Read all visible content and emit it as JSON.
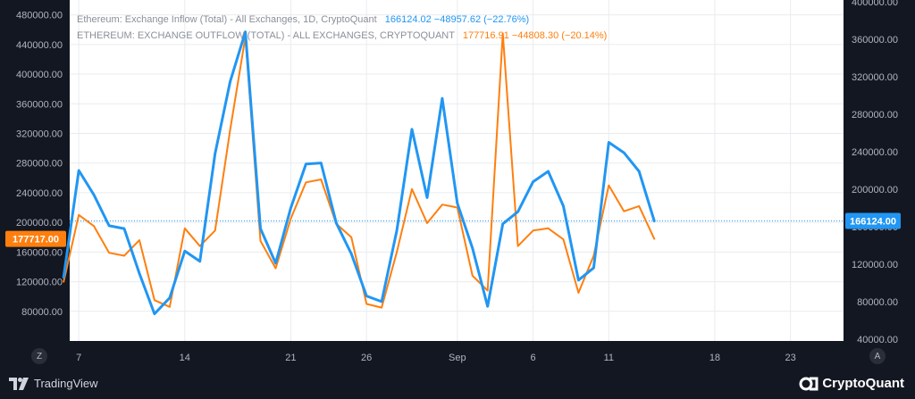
{
  "legend": {
    "inflow_name": "Ethereum: Exchange Inflow (Total) - All Exchanges, 1D, CryptoQuant",
    "inflow_values": "166124.02  −48957.62 (−22.76%)",
    "outflow_name": "ETHEREUM: EXCHANGE OUTFLOW (TOTAL) - ALL EXCHANGES, CRYPTOQUANT",
    "outflow_values": "177716.91  −44808.30 (−20.14%)"
  },
  "footer": {
    "tradingview_label": "TradingView",
    "cryptoquant_label": "CryptoQuant"
  },
  "scale_buttons": {
    "left": "Z",
    "right": "A"
  },
  "colors": {
    "background": "#131722",
    "inflow": "#2196f3",
    "outflow": "#ff7f0e",
    "grid": "#2a2e39",
    "tick": "#b2b5be"
  },
  "chart_data": {
    "type": "line",
    "x_tick_labels": [
      "7",
      "14",
      "21",
      "26",
      "Sep",
      "6",
      "11",
      "18",
      "23"
    ],
    "x_tick_days": [
      7,
      14,
      21,
      26,
      32,
      37,
      42,
      49,
      54
    ],
    "x_range_days": [
      6.4,
      57.5
    ],
    "left_axis": {
      "ylim": [
        40000,
        500000
      ],
      "ticks": [
        80000,
        120000,
        160000,
        200000,
        240000,
        280000,
        320000,
        360000,
        400000,
        440000,
        480000
      ],
      "tick_labels": [
        "80000.00",
        "120000.00",
        "160000.00",
        "200000.00",
        "240000.00",
        "280000.00",
        "320000.00",
        "360000.00",
        "400000.00",
        "440000.00",
        "480000.00"
      ]
    },
    "right_axis": {
      "ylim": [
        38000,
        402000
      ],
      "ticks": [
        40000,
        80000,
        120000,
        160000,
        200000,
        240000,
        280000,
        320000,
        360000,
        400000
      ],
      "tick_labels": [
        "40000.00",
        "80000.00",
        "120000.00",
        "160000.00",
        "200000.00",
        "240000.00",
        "280000.00",
        "320000.00",
        "360000.00",
        "400000.00"
      ]
    },
    "grid": true,
    "series": [
      {
        "name": "Ethereum: Exchange Inflow (Total) - All Exchanges, 1D, CryptoQuant",
        "axis": "right",
        "color": "#2196f3",
        "x": [
          6,
          7,
          8,
          9,
          10,
          11,
          12,
          13,
          14,
          15,
          16,
          17,
          18,
          19,
          20,
          21,
          22,
          23,
          24,
          25,
          26,
          27,
          28,
          29,
          30,
          31,
          32,
          33,
          34,
          35,
          36,
          37,
          38,
          39,
          40,
          41,
          42,
          43,
          44,
          45
        ],
        "values": [
          106000,
          220000,
          194000,
          161000,
          158000,
          110000,
          67000,
          84000,
          134000,
          123000,
          238000,
          315000,
          368000,
          158000,
          121000,
          180000,
          227000,
          228000,
          164000,
          131000,
          86000,
          80000,
          156000,
          264000,
          191000,
          297000,
          185000,
          137000,
          75000,
          163000,
          176000,
          208000,
          219000,
          182000,
          103000,
          116000,
          250000,
          239000,
          219000,
          166124
        ]
      },
      {
        "name": "ETHEREUM: EXCHANGE OUTFLOW (TOTAL) - ALL EXCHANGES, CRYPTOQUANT",
        "axis": "left",
        "color": "#ff7f0e",
        "x": [
          6,
          7,
          8,
          9,
          10,
          11,
          12,
          13,
          14,
          15,
          16,
          17,
          18,
          19,
          20,
          21,
          22,
          23,
          24,
          25,
          26,
          27,
          28,
          29,
          30,
          31,
          32,
          33,
          34,
          35,
          36,
          37,
          38,
          39,
          40,
          41,
          42,
          43,
          44,
          45
        ],
        "values": [
          120000,
          210000,
          195000,
          159000,
          155000,
          176000,
          95000,
          86000,
          192000,
          168000,
          189000,
          325000,
          450000,
          175000,
          138000,
          205000,
          254000,
          258000,
          198000,
          180000,
          90000,
          85000,
          160000,
          245000,
          199000,
          224000,
          220000,
          128000,
          108000,
          455000,
          168000,
          189000,
          192000,
          177000,
          105000,
          155000,
          250000,
          215000,
          222000,
          177717
        ]
      }
    ]
  }
}
